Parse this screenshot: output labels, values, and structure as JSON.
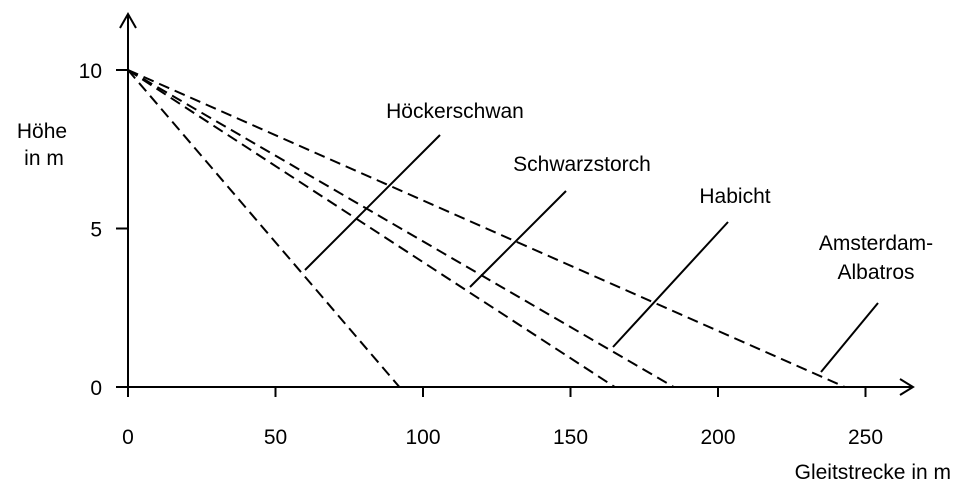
{
  "chart_data": {
    "type": "line",
    "xlabel": "Gleitstrecke in m",
    "ylabel_lines": [
      "Höhe",
      "in m"
    ],
    "xlim": [
      0,
      250
    ],
    "ylim": [
      0,
      10
    ],
    "xticks": [
      0,
      50,
      100,
      150,
      200,
      250
    ],
    "yticks": [
      0,
      5,
      10
    ],
    "grid": false,
    "legend": "none",
    "series": [
      {
        "name": "Höckerschwan",
        "x": [
          0,
          92
        ],
        "y": [
          10,
          0
        ]
      },
      {
        "name": "Schwarzstorch",
        "x": [
          0,
          165
        ],
        "y": [
          10,
          0
        ]
      },
      {
        "name": "Habicht",
        "x": [
          0,
          185
        ],
        "y": [
          10,
          0
        ]
      },
      {
        "name": "Amsterdam-Albatros",
        "label_lines": [
          "Amsterdam-",
          "Albatros"
        ],
        "x": [
          0,
          243
        ],
        "y": [
          10,
          0
        ]
      }
    ]
  }
}
